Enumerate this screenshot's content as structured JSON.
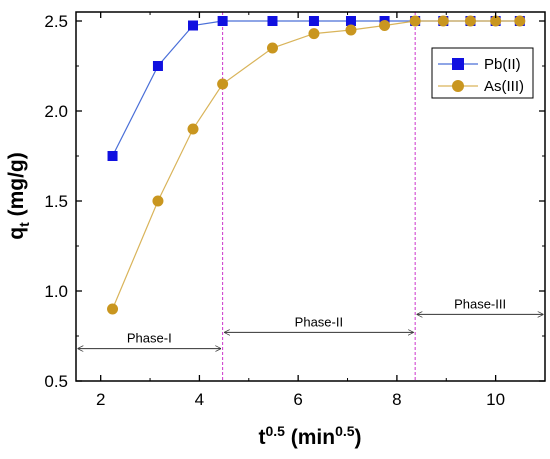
{
  "chart_data": {
    "type": "line",
    "xlabel": {
      "base": "t",
      "sup": "0.5",
      "unit_open": " (min",
      "unit_sup": "0.5",
      "unit_close": ")"
    },
    "ylabel": {
      "base": "q",
      "sub": "t",
      "unit": " (mg/g)"
    },
    "xlim": [
      1.5,
      11.0
    ],
    "ylim": [
      0.5,
      2.55
    ],
    "x_ticks": [
      2,
      4,
      6,
      8,
      10
    ],
    "y_ticks": [
      0.5,
      1.0,
      1.5,
      2.0,
      2.5
    ],
    "x_tick_labels": [
      "2",
      "4",
      "6",
      "8",
      "10"
    ],
    "y_tick_labels": [
      "0.5",
      "1.0",
      "1.5",
      "2.0",
      "2.5"
    ],
    "grid": false,
    "legend_position": "top-right",
    "series": [
      {
        "name": "Pb(II)",
        "marker": "square",
        "color": "#1010e0",
        "line_color": "#4a6fd8",
        "x": [
          2.24,
          3.16,
          3.87,
          4.47,
          5.48,
          6.32,
          7.07,
          7.75,
          8.37,
          8.94,
          9.49,
          10.0,
          10.49
        ],
        "y": [
          1.75,
          2.25,
          2.475,
          2.5,
          2.5,
          2.5,
          2.5,
          2.5,
          2.5,
          2.5,
          2.5,
          2.5,
          2.5
        ]
      },
      {
        "name": "As(III)",
        "marker": "circle",
        "color": "#c9961f",
        "line_color": "#d9b45a",
        "x": [
          2.24,
          3.16,
          3.87,
          4.47,
          5.48,
          6.32,
          7.07,
          7.75,
          8.37,
          8.94,
          9.49,
          10.0,
          10.49
        ],
        "y": [
          0.9,
          1.5,
          1.9,
          2.15,
          2.35,
          2.43,
          2.45,
          2.475,
          2.5,
          2.5,
          2.5,
          2.5,
          2.5
        ]
      }
    ],
    "vlines": [
      4.47,
      8.37
    ],
    "phases": [
      {
        "label": "Phase-I",
        "x_start": 1.5,
        "x_end": 4.47,
        "y": 0.68
      },
      {
        "label": "Phase-II",
        "x_start": 4.47,
        "x_end": 8.37,
        "y": 0.77
      },
      {
        "label": "Phase-III",
        "x_start": 8.37,
        "x_end": 11.0,
        "y": 0.87
      }
    ],
    "vline_color": "#cc33cc"
  }
}
